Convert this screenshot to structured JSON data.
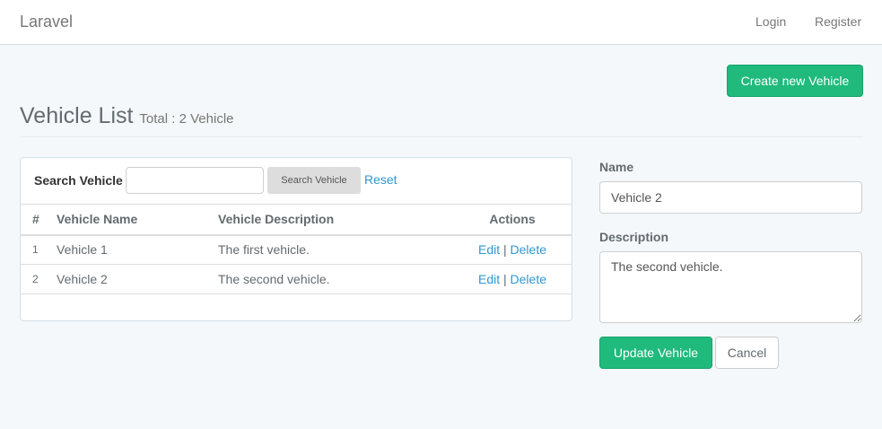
{
  "navbar": {
    "brand": "Laravel",
    "login": "Login",
    "register": "Register"
  },
  "header": {
    "title": "Vehicle List",
    "subtitle": "Total : 2 Vehicle",
    "create_button": "Create new Vehicle"
  },
  "search": {
    "label": "Search Vehicle",
    "value": "",
    "button": "Search Vehicle",
    "reset": "Reset"
  },
  "table": {
    "columns": [
      "#",
      "Vehicle Name",
      "Vehicle Description",
      "Actions"
    ],
    "rows": [
      {
        "num": "1",
        "name": "Vehicle 1",
        "description": "The first vehicle.",
        "edit": "Edit",
        "sep": "|",
        "delete": "Delete"
      },
      {
        "num": "2",
        "name": "Vehicle 2",
        "description": "The second vehicle.",
        "edit": "Edit",
        "sep": "|",
        "delete": "Delete"
      }
    ]
  },
  "form": {
    "name_label": "Name",
    "name_value": "Vehicle 2",
    "description_label": "Description",
    "description_value": "The second vehicle.",
    "update_button": "Update Vehicle",
    "cancel_button": "Cancel"
  },
  "colors": {
    "accent": "#1fba7c",
    "link": "#3097d1",
    "background": "#f5f8fa"
  }
}
